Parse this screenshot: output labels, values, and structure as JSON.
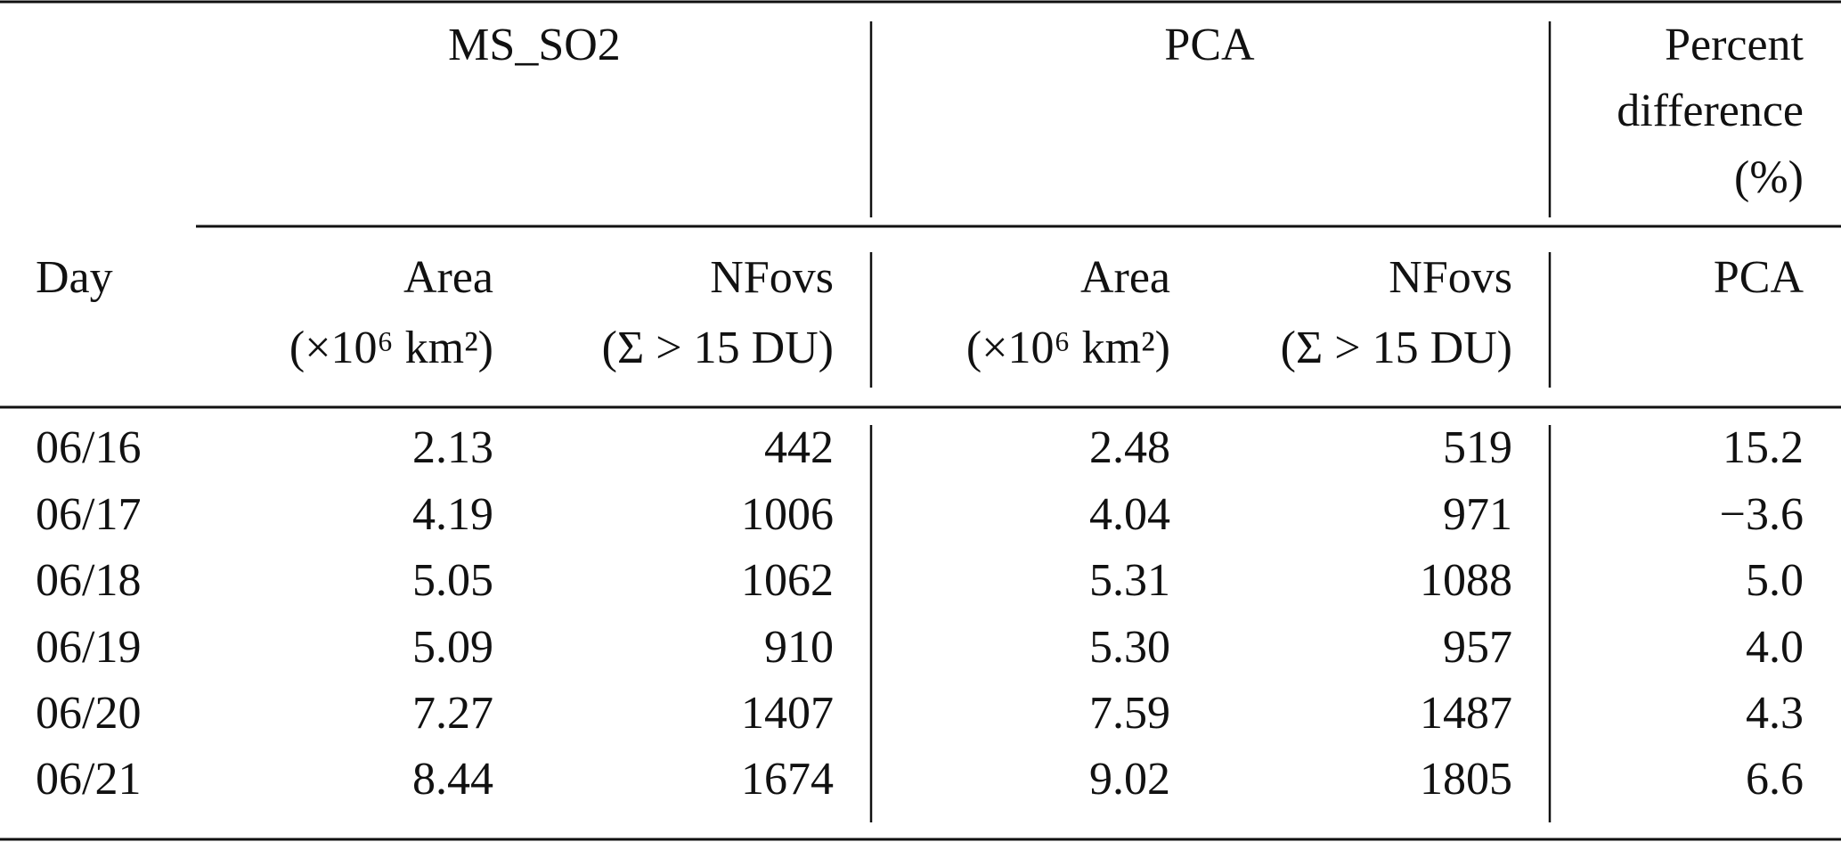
{
  "table": {
    "group_headers": [
      "MS_SO2",
      "PCA",
      [
        "Percent",
        "difference",
        "(%)"
      ]
    ],
    "column_headers": [
      [
        "Day"
      ],
      [
        "Area",
        "(×10⁶ km²)"
      ],
      [
        "NFovs",
        "(Σ > 15 DU)"
      ],
      [
        "Area",
        "(×10⁶ km²)"
      ],
      [
        "NFovs",
        "(Σ > 15 DU)"
      ],
      [
        "PCA"
      ]
    ],
    "rows": [
      [
        "06/16",
        "2.13",
        "442",
        "2.48",
        "519",
        "15.2"
      ],
      [
        "06/17",
        "4.19",
        "1006",
        "4.04",
        "971",
        "−3.6"
      ],
      [
        "06/18",
        "5.05",
        "1062",
        "5.31",
        "1088",
        "5.0"
      ],
      [
        "06/19",
        "5.09",
        "910",
        "5.30",
        "957",
        "4.0"
      ],
      [
        "06/20",
        "7.27",
        "1407",
        "7.59",
        "1487",
        "4.3"
      ],
      [
        "06/21",
        "8.44",
        "1674",
        "9.02",
        "1805",
        "6.6"
      ]
    ]
  }
}
